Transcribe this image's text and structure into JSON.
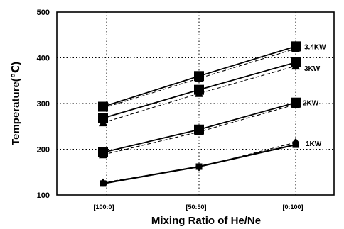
{
  "chart_data": {
    "type": "line",
    "title": "",
    "xlabel": "Mixing Ratio of He/Ne",
    "ylabel": "Temperature(℃)",
    "categories": [
      "[100:0]",
      "[50:50]",
      "[0:100]"
    ],
    "ylim": [
      100,
      500
    ],
    "yticks": [
      100,
      200,
      300,
      400,
      500
    ],
    "grid": true,
    "series": [
      {
        "name": "3.4KW",
        "values": [
          293,
          360,
          425
        ],
        "marker": "square"
      },
      {
        "name": "3KW",
        "values": [
          268,
          330,
          390
        ],
        "marker": "square"
      },
      {
        "name": "2KW",
        "values": [
          193,
          243,
          302
        ],
        "marker": "square"
      },
      {
        "name": "1KW",
        "values": [
          125,
          162,
          210
        ],
        "marker": "square"
      }
    ],
    "series_alt": [
      {
        "values": [
          290,
          355,
          420
        ],
        "marker": "triangle"
      },
      {
        "values": [
          258,
          322,
          382
        ],
        "marker": "triangle"
      },
      {
        "values": [
          188,
          238,
          298
        ],
        "marker": "triangle"
      },
      {
        "values": [
          127,
          161,
          215
        ],
        "marker": "diamond"
      }
    ]
  }
}
